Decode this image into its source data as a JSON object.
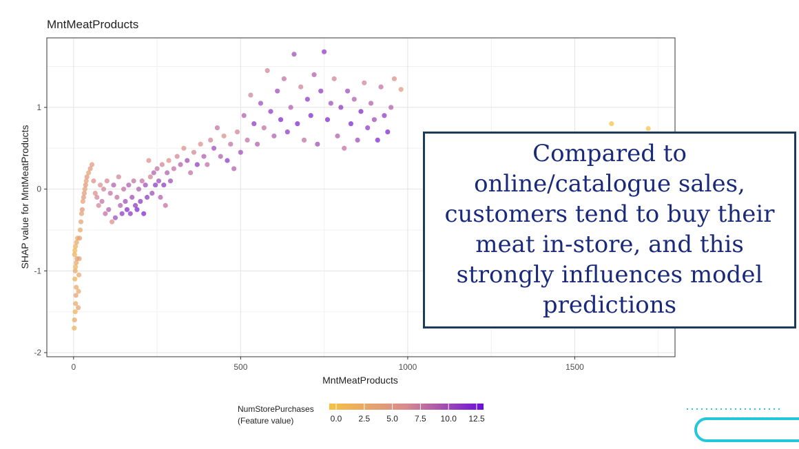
{
  "title": "MntMeatProducts",
  "callout": {
    "text": "Compared to online/catalogue sales, customers tend to buy their meat in-store, and this strongly influences model predictions"
  },
  "colors": {
    "low": "#f5c242",
    "mid": "#d98a8e",
    "high": "#6a0fd6",
    "callout_border": "#1b3a5c",
    "callout_text": "#1a2a7a",
    "accent_cyan": "#22c7d8"
  },
  "chart_data": {
    "type": "scatter",
    "title": "MntMeatProducts",
    "xlabel": "MntMeatProducts",
    "ylabel": "SHAP value for MntMeatProducts",
    "xlim": [
      -80,
      1800
    ],
    "ylim": [
      -2.05,
      1.85
    ],
    "xticks": [
      0,
      500,
      1000,
      1500
    ],
    "yticks": [
      -2,
      -1,
      0,
      1
    ],
    "grid": true,
    "legend": {
      "position": "bottom",
      "title_line1": "NumStorePurchases",
      "title_line2": "(Feature value)",
      "ticks": [
        "0.0",
        "2.5",
        "5.0",
        "7.5",
        "10.0",
        "12.5"
      ],
      "range": [
        0,
        13
      ]
    },
    "color_by": "NumStorePurchases",
    "points": [
      [
        2,
        -1.7,
        2
      ],
      [
        3,
        -1.6,
        3
      ],
      [
        5,
        -1.5,
        2
      ],
      [
        6,
        -1.4,
        3
      ],
      [
        7,
        -1.3,
        4
      ],
      [
        8,
        -1.2,
        3
      ],
      [
        4,
        -1.1,
        2
      ],
      [
        5,
        -1.0,
        3
      ],
      [
        6,
        -0.95,
        2
      ],
      [
        8,
        -0.9,
        3
      ],
      [
        10,
        -0.85,
        4
      ],
      [
        3,
        -0.8,
        2
      ],
      [
        4,
        -0.75,
        1
      ],
      [
        6,
        -0.7,
        2
      ],
      [
        9,
        -0.65,
        3
      ],
      [
        12,
        -0.6,
        3
      ],
      [
        14,
        -1.45,
        4
      ],
      [
        15,
        -1.25,
        3
      ],
      [
        16,
        -1.05,
        3
      ],
      [
        17,
        -0.85,
        4
      ],
      [
        18,
        -0.6,
        4
      ],
      [
        20,
        -0.5,
        3
      ],
      [
        22,
        -0.4,
        4
      ],
      [
        24,
        -0.3,
        4
      ],
      [
        26,
        -0.25,
        5
      ],
      [
        28,
        -0.15,
        4
      ],
      [
        30,
        -0.1,
        5
      ],
      [
        32,
        -0.05,
        5
      ],
      [
        34,
        0.0,
        4
      ],
      [
        36,
        0.05,
        5
      ],
      [
        38,
        0.1,
        4
      ],
      [
        40,
        0.15,
        5
      ],
      [
        45,
        0.2,
        4
      ],
      [
        50,
        0.25,
        5
      ],
      [
        55,
        0.3,
        5
      ],
      [
        60,
        0.1,
        6
      ],
      [
        65,
        -0.05,
        6
      ],
      [
        70,
        -0.1,
        7
      ],
      [
        75,
        -0.2,
        7
      ],
      [
        80,
        0.05,
        6
      ],
      [
        85,
        -0.15,
        8
      ],
      [
        90,
        0.0,
        7
      ],
      [
        95,
        -0.3,
        8
      ],
      [
        100,
        0.1,
        7
      ],
      [
        105,
        -0.25,
        9
      ],
      [
        110,
        -0.05,
        8
      ],
      [
        115,
        -0.4,
        6
      ],
      [
        120,
        0.05,
        9
      ],
      [
        125,
        -0.35,
        10
      ],
      [
        130,
        -0.1,
        8
      ],
      [
        135,
        0.15,
        7
      ],
      [
        140,
        -0.2,
        9
      ],
      [
        145,
        -0.3,
        11
      ],
      [
        150,
        0.0,
        8
      ],
      [
        155,
        -0.15,
        10
      ],
      [
        160,
        -0.25,
        12
      ],
      [
        165,
        0.05,
        9
      ],
      [
        170,
        -0.3,
        11
      ],
      [
        175,
        -0.1,
        10
      ],
      [
        180,
        0.1,
        8
      ],
      [
        185,
        -0.2,
        11
      ],
      [
        190,
        -0.25,
        12
      ],
      [
        195,
        0.0,
        9
      ],
      [
        200,
        -0.15,
        11
      ],
      [
        205,
        0.1,
        8
      ],
      [
        210,
        -0.3,
        12
      ],
      [
        215,
        0.05,
        10
      ],
      [
        220,
        -0.1,
        11
      ],
      [
        225,
        0.35,
        6
      ],
      [
        230,
        0.15,
        7
      ],
      [
        235,
        -0.05,
        10
      ],
      [
        240,
        0.2,
        9
      ],
      [
        245,
        0.05,
        11
      ],
      [
        250,
        0.25,
        8
      ],
      [
        255,
        0.1,
        10
      ],
      [
        260,
        -0.1,
        9
      ],
      [
        265,
        0.3,
        7
      ],
      [
        270,
        0.05,
        11
      ],
      [
        275,
        -0.2,
        8
      ],
      [
        280,
        0.2,
        9
      ],
      [
        285,
        0.35,
        6
      ],
      [
        290,
        0.1,
        10
      ],
      [
        300,
        0.25,
        8
      ],
      [
        310,
        0.4,
        7
      ],
      [
        320,
        0.3,
        9
      ],
      [
        330,
        0.5,
        6
      ],
      [
        340,
        0.35,
        10
      ],
      [
        350,
        0.2,
        8
      ],
      [
        360,
        0.45,
        7
      ],
      [
        370,
        0.3,
        11
      ],
      [
        380,
        0.55,
        6
      ],
      [
        390,
        0.4,
        9
      ],
      [
        400,
        0.3,
        8
      ],
      [
        410,
        0.6,
        7
      ],
      [
        420,
        0.5,
        10
      ],
      [
        430,
        0.75,
        8
      ],
      [
        440,
        0.4,
        9
      ],
      [
        450,
        0.65,
        6
      ],
      [
        460,
        0.35,
        11
      ],
      [
        470,
        0.55,
        8
      ],
      [
        480,
        0.25,
        9
      ],
      [
        490,
        0.7,
        7
      ],
      [
        500,
        0.45,
        10
      ],
      [
        510,
        0.9,
        9
      ],
      [
        520,
        0.6,
        8
      ],
      [
        530,
        1.15,
        7
      ],
      [
        540,
        0.8,
        11
      ],
      [
        550,
        0.55,
        9
      ],
      [
        560,
        1.05,
        10
      ],
      [
        570,
        0.75,
        8
      ],
      [
        580,
        1.45,
        7
      ],
      [
        590,
        0.95,
        11
      ],
      [
        600,
        0.65,
        9
      ],
      [
        610,
        1.2,
        10
      ],
      [
        620,
        0.85,
        12
      ],
      [
        630,
        1.35,
        8
      ],
      [
        640,
        0.7,
        11
      ],
      [
        650,
        1.0,
        9
      ],
      [
        660,
        1.65,
        10
      ],
      [
        670,
        0.8,
        12
      ],
      [
        680,
        1.25,
        7
      ],
      [
        690,
        0.6,
        8
      ],
      [
        700,
        1.1,
        11
      ],
      [
        710,
        0.9,
        12
      ],
      [
        720,
        1.4,
        9
      ],
      [
        730,
        0.55,
        10
      ],
      [
        740,
        1.2,
        11
      ],
      [
        750,
        1.68,
        11
      ],
      [
        760,
        0.85,
        12
      ],
      [
        770,
        1.05,
        10
      ],
      [
        780,
        1.35,
        7
      ],
      [
        790,
        0.65,
        9
      ],
      [
        800,
        1.0,
        11
      ],
      [
        810,
        0.5,
        8
      ],
      [
        820,
        1.2,
        10
      ],
      [
        830,
        0.8,
        12
      ],
      [
        840,
        1.1,
        9
      ],
      [
        850,
        0.6,
        10
      ],
      [
        860,
        0.95,
        12
      ],
      [
        870,
        1.3,
        7
      ],
      [
        880,
        0.75,
        11
      ],
      [
        890,
        1.05,
        9
      ],
      [
        900,
        0.85,
        10
      ],
      [
        910,
        0.6,
        12
      ],
      [
        920,
        1.25,
        8
      ],
      [
        930,
        0.9,
        11
      ],
      [
        940,
        0.7,
        12
      ],
      [
        950,
        1.0,
        9
      ],
      [
        960,
        1.35,
        6
      ],
      [
        980,
        1.22,
        5
      ],
      [
        1610,
        0.8,
        0
      ],
      [
        1720,
        0.74,
        0
      ]
    ]
  }
}
